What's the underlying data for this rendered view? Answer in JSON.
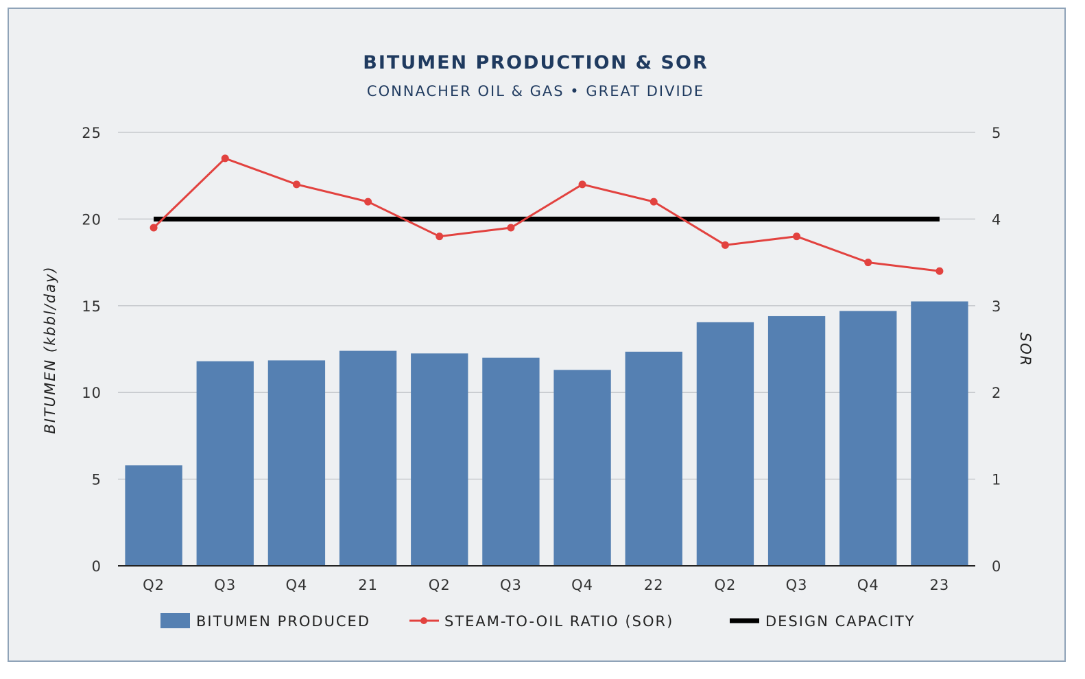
{
  "chart_data": {
    "type": "bar",
    "title": "BITUMEN PRODUCTION & SOR",
    "subtitle": "CONNACHER OIL & GAS • GREAT DIVIDE",
    "categories": [
      "Q2",
      "Q3",
      "Q4",
      "21",
      "Q2",
      "Q3",
      "Q4",
      "22",
      "Q2",
      "Q3",
      "Q4",
      "23"
    ],
    "ylabel": "BITUMEN (kbbl/day)",
    "y2label": "SOR",
    "ylim": [
      0,
      25
    ],
    "y2lim": [
      0,
      5
    ],
    "yticks": [
      "0",
      "5",
      "10",
      "15",
      "20",
      "25"
    ],
    "y2ticks": [
      "0",
      "1",
      "2",
      "3",
      "4",
      "5"
    ],
    "grid": true,
    "legend_position": "bottom",
    "series": [
      {
        "name": "BITUMEN PRODUCED",
        "type": "bar",
        "axis": "left",
        "color": "#5580b2",
        "values": [
          5.8,
          11.8,
          11.85,
          12.4,
          12.25,
          12.0,
          11.3,
          12.35,
          14.05,
          14.4,
          14.7,
          15.25
        ]
      },
      {
        "name": "STEAM-TO-OIL RATIO (SOR)",
        "type": "line",
        "axis": "right",
        "color": "#e2423f",
        "values": [
          3.9,
          4.7,
          4.4,
          4.2,
          3.8,
          3.9,
          4.4,
          4.2,
          3.7,
          3.8,
          3.5,
          3.4
        ]
      },
      {
        "name": "DESIGN CAPACITY",
        "type": "line",
        "axis": "left",
        "color": "#000000",
        "values": [
          20,
          20,
          20,
          20,
          20,
          20,
          20,
          20,
          20,
          20,
          20,
          20
        ]
      }
    ]
  }
}
